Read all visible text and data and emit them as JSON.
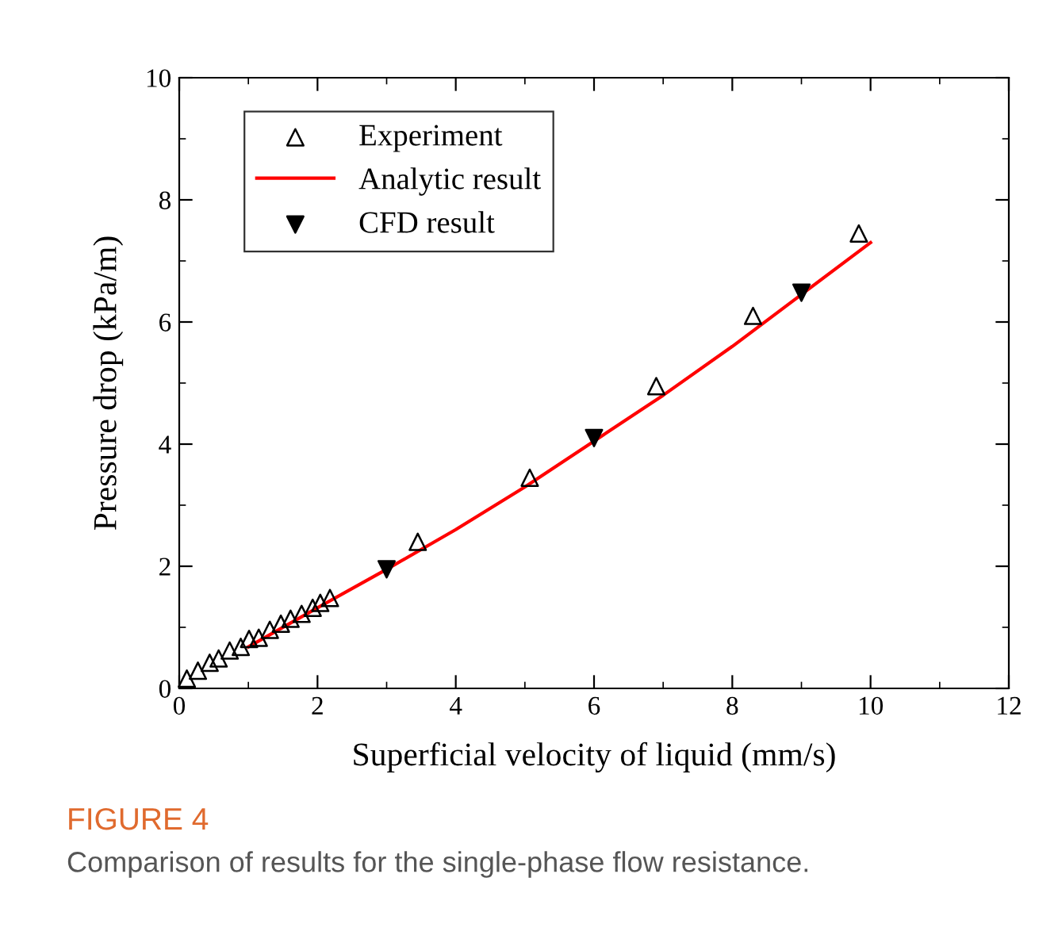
{
  "chart_data": {
    "type": "scatter",
    "xlabel": "Superficial velocity of liquid (mm/s)",
    "ylabel": "Pressure drop (kPa/m)",
    "xlim": [
      0,
      12
    ],
    "xticks": [
      0,
      2,
      4,
      6,
      8,
      10,
      12
    ],
    "ylim": [
      0,
      10
    ],
    "yticks": [
      0,
      2,
      4,
      6,
      8,
      10
    ],
    "grid": false,
    "legend": "top left",
    "annotations": [
      "FIGURE 4",
      "Comparison of results for the single-phase flow resistance."
    ],
    "series": [
      {
        "name": "Experiment",
        "marker": "triangle",
        "color": "#000000",
        "x": [
          0.11,
          0.27,
          0.44,
          0.57,
          0.73,
          0.89,
          1.01,
          1.15,
          1.31,
          1.47,
          1.61,
          1.77,
          1.93,
          2.04,
          2.18,
          3.45,
          5.07,
          6.9,
          8.3,
          9.83
        ],
        "values": [
          0.16,
          0.29,
          0.42,
          0.49,
          0.62,
          0.68,
          0.81,
          0.83,
          0.96,
          1.06,
          1.14,
          1.22,
          1.32,
          1.4,
          1.48,
          2.4,
          3.45,
          4.95,
          6.1,
          7.45
        ]
      },
      {
        "name": "Analytic result",
        "type": "line",
        "marker": "none",
        "color": "#ff0000",
        "x": [
          1,
          2,
          3,
          4,
          5,
          6,
          7,
          8,
          9,
          10
        ],
        "values": [
          0.68,
          1.32,
          1.95,
          2.6,
          3.3,
          4.05,
          4.8,
          5.6,
          6.45,
          7.3
        ]
      },
      {
        "name": "CFD result",
        "marker": "triangle_down",
        "color": "#000000",
        "x": [
          3,
          6,
          9
        ],
        "values": [
          1.95,
          4.1,
          6.48
        ]
      }
    ]
  }
}
